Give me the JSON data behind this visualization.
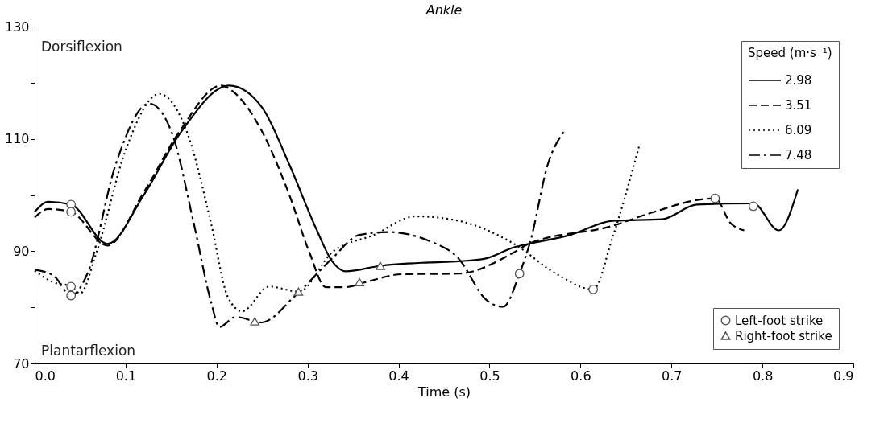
{
  "chart_data": {
    "type": "line",
    "title": "Ankle",
    "xlabel": "Time (s)",
    "legend_title": "Speed (m·s⁻¹)",
    "legend": "right",
    "grid": false,
    "xlim": [
      0,
      0.9
    ],
    "ylim": [
      70,
      130
    ],
    "xticks": [
      {
        "value": 0,
        "label": "0.0"
      },
      0.1,
      0.2,
      0.3,
      0.4,
      0.5,
      0.6,
      0.7,
      0.8,
      0.9
    ],
    "yticks": [
      70,
      {
        "value": 80,
        "label": null
      },
      90,
      {
        "value": 100,
        "label": null
      },
      110,
      {
        "value": 120,
        "label": null
      },
      130
    ],
    "annotations": [
      "Dorsiflexion",
      "Plantarflexion"
    ],
    "series": [
      {
        "name": "2.98",
        "color": "#000000",
        "line_style": "solid",
        "x": [
          0,
          0.015,
          0.04,
          0.08,
          0.12,
          0.16,
          0.214,
          0.25,
          0.28,
          0.31,
          0.327,
          0.342,
          0.38,
          0.434,
          0.466,
          0.496,
          0.527,
          0.543,
          0.589,
          0.635,
          0.69,
          0.728,
          0.79,
          0.818,
          0.839
        ],
        "values": [
          97,
          98.8,
          98.3,
          91.3,
          100,
          111,
          119.5,
          115.6,
          105.4,
          93.8,
          88.2,
          86.4,
          87.4,
          88,
          88.2,
          88.7,
          90.7,
          91.3,
          92.9,
          95.4,
          95.7,
          98.3,
          98.5,
          93.7,
          101
        ]
      },
      {
        "name": "3.51",
        "color": "#000000",
        "line_style": "dashed",
        "x": [
          0,
          0.015,
          0.04,
          0.08,
          0.12,
          0.16,
          0.205,
          0.219,
          0.249,
          0.28,
          0.302,
          0.32,
          0.342,
          0.364,
          0.404,
          0.466,
          0.527,
          0.543,
          0.635,
          0.681,
          0.737,
          0.748,
          0.765,
          0.78
        ],
        "values": [
          96,
          97.5,
          97,
          91,
          100.5,
          111.5,
          119.5,
          118.3,
          111.6,
          100,
          89.8,
          83.6,
          83.6,
          84.5,
          85.9,
          86,
          89.8,
          91.3,
          94.5,
          97,
          99.3,
          99.4,
          95,
          93.7
        ]
      },
      {
        "name": "6.09",
        "color": "#000000",
        "line_style": "dotted",
        "x": [
          0,
          0.02,
          0.04,
          0.05,
          0.068,
          0.1,
          0.137,
          0.169,
          0.194,
          0.212,
          0.228,
          0.258,
          0.29,
          0.327,
          0.373,
          0.419,
          0.466,
          0.527,
          0.573,
          0.614,
          0.635,
          0.665
        ],
        "values": [
          86.5,
          84.5,
          83.7,
          82.5,
          89.8,
          108,
          118,
          110.5,
          94.9,
          82,
          79.3,
          83.7,
          82.8,
          89.8,
          92.9,
          96.2,
          95.4,
          91.3,
          86,
          83.2,
          92.3,
          109
        ]
      },
      {
        "name": "7.48",
        "color": "#000000",
        "line_style": "dashdot",
        "x": [
          0,
          0.021,
          0.04,
          0.058,
          0.089,
          0.126,
          0.151,
          0.175,
          0.194,
          0.203,
          0.221,
          0.249,
          0.286,
          0.327,
          0.357,
          0.388,
          0.434,
          0.466,
          0.496,
          0.515,
          0.533,
          0.545,
          0.564,
          0.584
        ],
        "values": [
          86.7,
          85.6,
          82.1,
          86,
          105.4,
          116.3,
          111,
          94.9,
          80.9,
          76.5,
          78.3,
          77.3,
          82,
          88.7,
          92.9,
          93.4,
          91.8,
          88.7,
          81.4,
          80.1,
          86,
          91.8,
          105.4,
          111.7
        ]
      },
      {
        "name": "Left-foot strike",
        "type": "scatter",
        "marker": "circle",
        "color": "#555555",
        "x": [
          0.04,
          0.04,
          0.04,
          0.04,
          0.533,
          0.614,
          0.748,
          0.79
        ],
        "values": [
          98.3,
          97,
          83.7,
          82.1,
          86,
          83.2,
          99.4,
          98
        ]
      },
      {
        "name": "Right-foot strike",
        "type": "scatter",
        "marker": "triangle",
        "color": "#555555",
        "x": [
          0.242,
          0.29,
          0.357,
          0.38
        ],
        "values": [
          77.5,
          82.8,
          84.5,
          87.4
        ]
      }
    ]
  }
}
